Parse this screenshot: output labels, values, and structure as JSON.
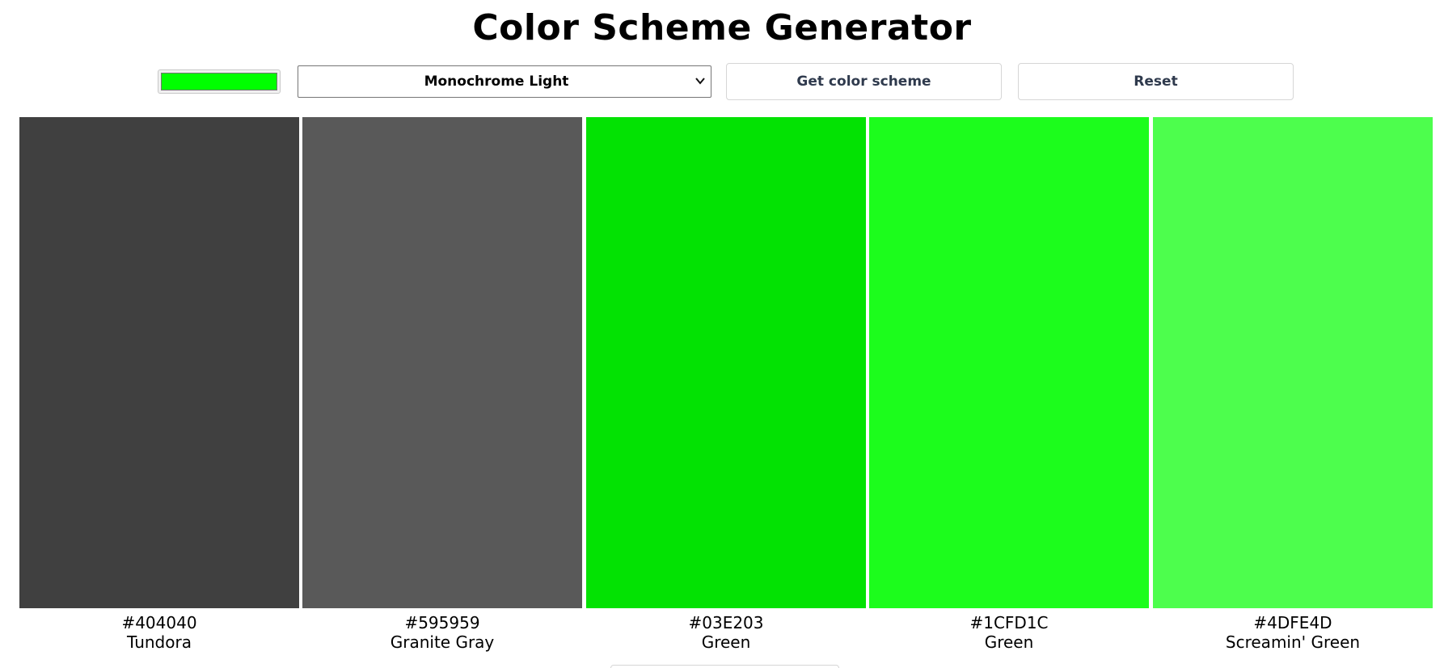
{
  "page": {
    "title": "Color Scheme Generator"
  },
  "controls": {
    "seed_color": "#00FF00",
    "scheme_mode": "Monochrome Light",
    "get_button_label": "Get color scheme",
    "reset_button_label": "Reset",
    "dropdown_icon": "chevron-down-icon"
  },
  "swatches": [
    {
      "hex": "#404040",
      "name": "Tundora",
      "color": "#404040"
    },
    {
      "hex": "#595959",
      "name": "Granite Gray",
      "color": "#595959"
    },
    {
      "hex": "#03E203",
      "name": "Green",
      "color": "#03E203"
    },
    {
      "hex": "#1CFD1C",
      "name": "Green",
      "color": "#1CFD1C"
    },
    {
      "hex": "#4DFE4D",
      "name": "Screamin' Green",
      "color": "#4DFE4D"
    }
  ]
}
